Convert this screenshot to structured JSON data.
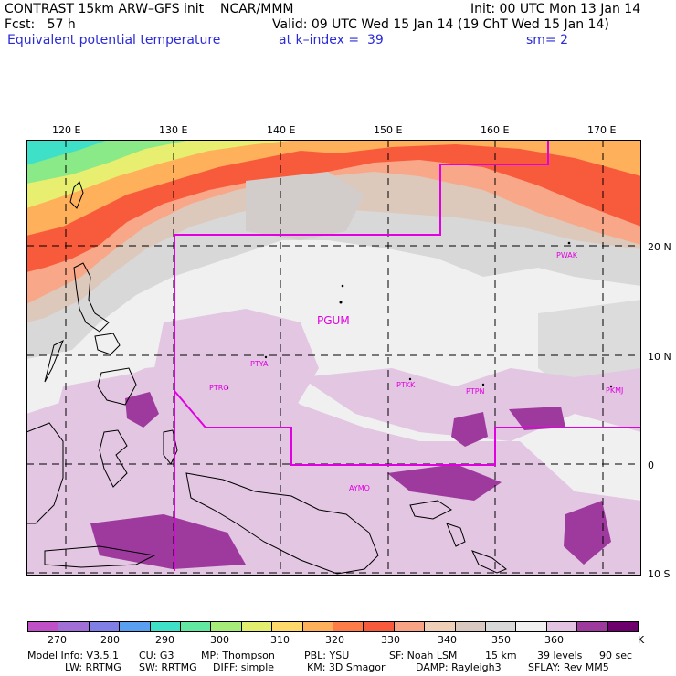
{
  "header": {
    "line1_left": "CONTRAST 15km ARW–GFS init    NCAR/MMM",
    "line1_right": "Init: 00 UTC Mon 13 Jan 14",
    "line2_left": "Fcst:   57 h",
    "line2_right": "Valid: 09 UTC Wed 15 Jan 14 (19 ChT Wed 15 Jan 14)",
    "line3_left": "Equivalent potential temperature",
    "line3_mid": "at k–index =  39",
    "line3_right": "sm= 2"
  },
  "map": {
    "lon_labels": [
      "120 E",
      "130 E",
      "140 E",
      "150 E",
      "160 E",
      "170 E"
    ],
    "lat_labels": [
      "20 N",
      "10 N",
      "0",
      "10 S"
    ],
    "stations": [
      "PGUM",
      "PWAK",
      "PTYA",
      "PTRO",
      "PTKK",
      "PTPN",
      "PKMJ",
      "AYMO"
    ],
    "boundary_color": "#e000e0"
  },
  "colorbar": {
    "labels": [
      "270",
      "280",
      "290",
      "300",
      "310",
      "320",
      "330",
      "340",
      "350",
      "360"
    ],
    "unit": "K",
    "colors": [
      "#c050c8",
      "#a070d8",
      "#7f7fe6",
      "#5aa0f0",
      "#3ee0c8",
      "#62e8a0",
      "#a6ec78",
      "#e4ee6e",
      "#ffda6a",
      "#ffb05a",
      "#ff7b48",
      "#f85a3c",
      "#f8a484",
      "#f0cfb8",
      "#d8c8c0",
      "#d8d8d8",
      "#f0f0f0",
      "#e2c4e2",
      "#9e3a9e",
      "#6e006e"
    ]
  },
  "footer": {
    "line1": [
      "Model Info: V3.5.1",
      "CU: G3",
      "MP: Thompson",
      "PBL: YSU",
      "SF: Noah LSM",
      "15 km",
      "39 levels",
      "90 sec"
    ],
    "line2": [
      "LW: RRTMG",
      "SW: RRTMG",
      "DIFF: simple",
      "KM: 3D Smagor",
      "DAMP: Rayleigh3",
      "SFLAY: Rev MM5"
    ]
  }
}
